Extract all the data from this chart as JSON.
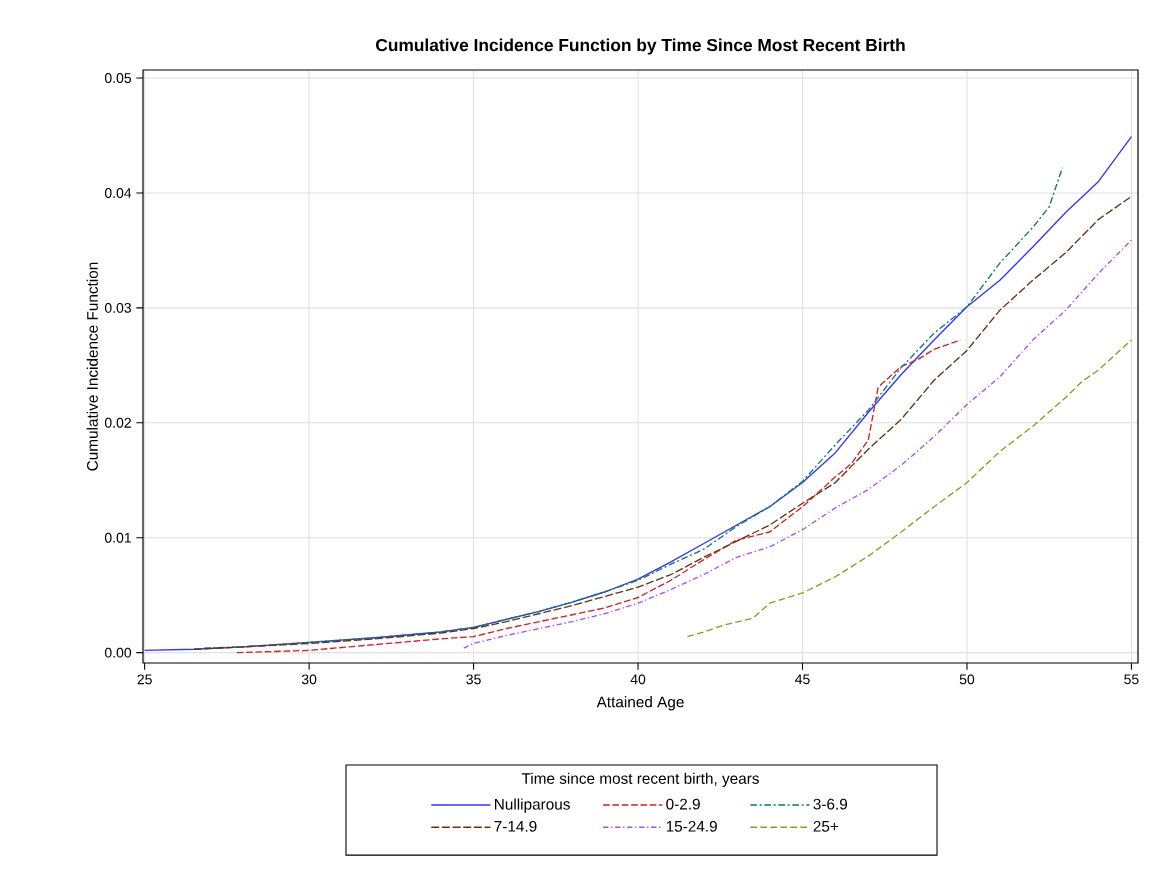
{
  "chart_data": {
    "type": "line",
    "title": "Cumulative Incidence Function by Time Since Most Recent Birth",
    "xlabel": "Attained Age",
    "ylabel": "Cumulative Incidence Function",
    "legend_title": "Time since most recent birth, years",
    "xlim": [
      24.95,
      55.2
    ],
    "ylim": [
      -0.0009,
      0.0507
    ],
    "xticks": [
      25,
      30,
      35,
      40,
      45,
      50,
      55
    ],
    "yticks": [
      {
        "value": 0,
        "label": "0.00"
      },
      {
        "value": 0.01,
        "label": "0.01"
      },
      {
        "value": 0.02,
        "label": "0.02"
      },
      {
        "value": 0.03,
        "label": "0.03"
      },
      {
        "value": 0.04,
        "label": "0.04"
      },
      {
        "value": 0.05,
        "label": "0.05"
      }
    ],
    "grid": true,
    "legend": "bottom",
    "series": [
      {
        "name": "Nulliparous",
        "color": "#3333ff",
        "line_style": "solid",
        "x": [
          25,
          26.5,
          28,
          30,
          32,
          34,
          35,
          36,
          37,
          38,
          39,
          40,
          41,
          42,
          43,
          44,
          45,
          46,
          47,
          48,
          49,
          50,
          51,
          52,
          53,
          54,
          55
        ],
        "values": [
          0.0002,
          0.0003,
          0.0005,
          0.0009,
          0.0013,
          0.0018,
          0.0022,
          0.0029,
          0.0036,
          0.0044,
          0.0053,
          0.0064,
          0.0079,
          0.0095,
          0.0111,
          0.0127,
          0.0148,
          0.0174,
          0.0209,
          0.0242,
          0.0272,
          0.0301,
          0.0324,
          0.0353,
          0.0383,
          0.041,
          0.0449
        ]
      },
      {
        "name": "0-2.9",
        "color": "#cc2229",
        "line_style": "dashed",
        "x": [
          27.8,
          30,
          32,
          34,
          35,
          36,
          37,
          38,
          39,
          40,
          41,
          42,
          43,
          44,
          45,
          46,
          46.5,
          47,
          47.3,
          48,
          48.5,
          49,
          49.8
        ],
        "values": [
          0.0,
          0.0002,
          0.0007,
          0.0012,
          0.0014,
          0.0021,
          0.0027,
          0.0033,
          0.0039,
          0.0048,
          0.0063,
          0.0081,
          0.0098,
          0.0105,
          0.0127,
          0.0153,
          0.0165,
          0.0185,
          0.0231,
          0.0249,
          0.0255,
          0.0264,
          0.0272
        ]
      },
      {
        "name": "3-6.9",
        "color": "#117766",
        "line_style": "dashed",
        "x": [
          26.8,
          28,
          30,
          32,
          34,
          35,
          36,
          37,
          38,
          39,
          40,
          41,
          42,
          43,
          44,
          45,
          46,
          47,
          48,
          49,
          50,
          51,
          52,
          52.5,
          52.9
        ],
        "values": [
          0.0004,
          0.0005,
          0.0009,
          0.0013,
          0.0018,
          0.0022,
          0.0029,
          0.0036,
          0.0044,
          0.0053,
          0.0063,
          0.0077,
          0.009,
          0.011,
          0.0127,
          0.0149,
          0.0181,
          0.0211,
          0.0248,
          0.0278,
          0.0301,
          0.0339,
          0.037,
          0.0388,
          0.0422
        ]
      },
      {
        "name": "7-14.9",
        "color": "#663311",
        "line_style": "dashed",
        "x": [
          26.5,
          28,
          30,
          32,
          34,
          35,
          36,
          37,
          38,
          39,
          40,
          41,
          42,
          43,
          44,
          45,
          46,
          47,
          48,
          49,
          50,
          51,
          52,
          53,
          54,
          55
        ],
        "values": [
          0.0003,
          0.0005,
          0.0008,
          0.0012,
          0.0017,
          0.0021,
          0.0027,
          0.0034,
          0.0041,
          0.0049,
          0.0057,
          0.0068,
          0.0083,
          0.0097,
          0.0111,
          0.013,
          0.0148,
          0.0177,
          0.0203,
          0.0237,
          0.0263,
          0.0298,
          0.0324,
          0.0348,
          0.0377,
          0.0397
        ]
      },
      {
        "name": "15-24.9",
        "color": "#a64dff",
        "line_style": "dashed",
        "x": [
          34.7,
          35,
          36,
          37,
          38,
          39,
          40,
          41,
          42,
          43,
          44,
          45,
          46,
          47,
          48,
          49,
          50,
          51,
          52,
          53,
          54,
          55
        ],
        "values": [
          0.0004,
          0.0008,
          0.0015,
          0.0021,
          0.0027,
          0.0034,
          0.0043,
          0.0055,
          0.0068,
          0.0083,
          0.0092,
          0.0107,
          0.0126,
          0.0142,
          0.0163,
          0.0188,
          0.0216,
          0.024,
          0.0272,
          0.0298,
          0.033,
          0.0359
        ]
      },
      {
        "name": "25+",
        "color": "#8c9a1f",
        "line_style": "dashed",
        "x": [
          41.5,
          42,
          42.6,
          43.5,
          44,
          45,
          46,
          47,
          48,
          49,
          50,
          51,
          52,
          53,
          53.5,
          54,
          55
        ],
        "values": [
          0.0014,
          0.0018,
          0.0024,
          0.003,
          0.0043,
          0.0052,
          0.0066,
          0.0084,
          0.0105,
          0.0127,
          0.0148,
          0.0175,
          0.0197,
          0.0222,
          0.0236,
          0.0246,
          0.0272
        ]
      }
    ]
  }
}
